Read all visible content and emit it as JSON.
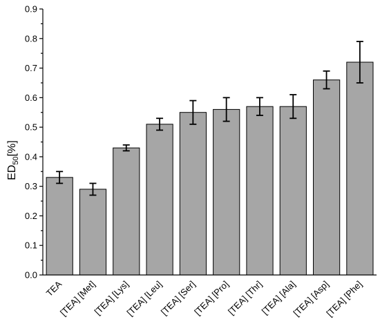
{
  "chart_data": {
    "type": "bar",
    "ylabel_main": "ED",
    "ylabel_sub": "50",
    "ylabel_suffix": "[%]",
    "xlabel": "",
    "ylim": [
      0,
      0.9
    ],
    "yticks": [
      "0.0",
      "0.1",
      "0.2",
      "0.3",
      "0.4",
      "0.5",
      "0.6",
      "0.7",
      "0.8",
      "0.9"
    ],
    "categories": [
      "TEA",
      "[TEA] [Met]",
      "[TEA] [Lys]",
      "[TEA] [Leu]",
      "[TEA] [Ser]",
      "[TEA] [Pro]",
      "[TEA] [Thr]",
      "[TEA] [Ala]",
      "[TEA] [Asp]",
      "[TEA] [Phe]"
    ],
    "values": [
      0.33,
      0.29,
      0.43,
      0.51,
      0.55,
      0.56,
      0.57,
      0.57,
      0.66,
      0.72
    ],
    "errors": [
      0.02,
      0.02,
      0.01,
      0.02,
      0.04,
      0.04,
      0.03,
      0.04,
      0.03,
      0.07
    ],
    "bar_color": "#a6a6a6",
    "grid": false,
    "legend": "none"
  }
}
